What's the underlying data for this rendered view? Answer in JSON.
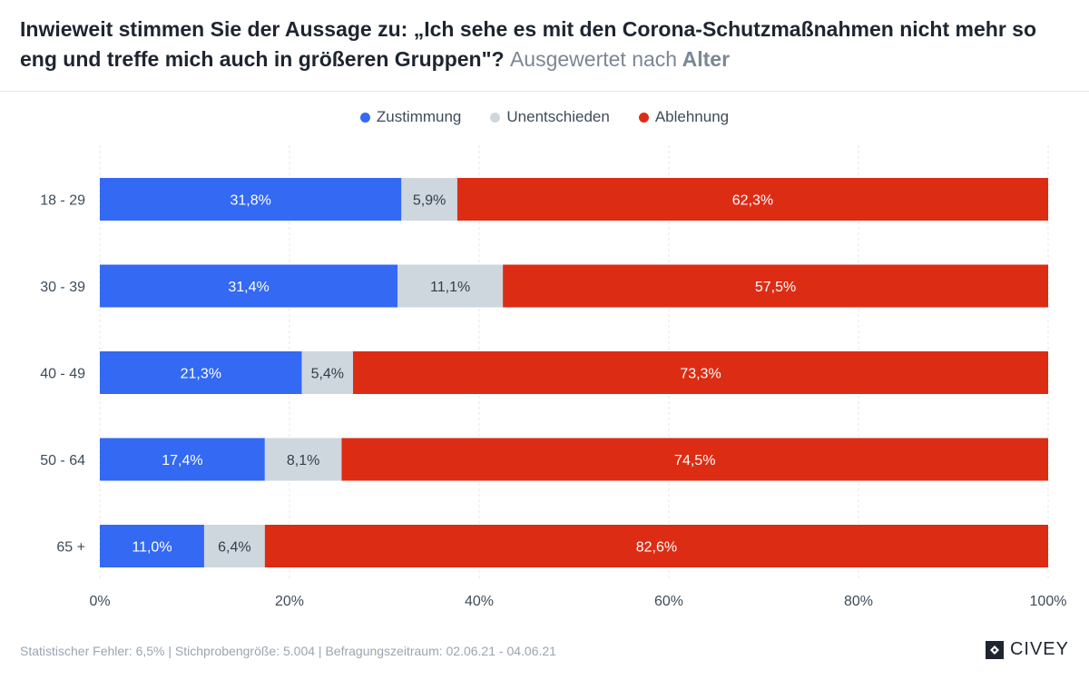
{
  "header": {
    "title": "Inwieweit stimmen Sie der Aussage zu: „Ich sehe es mit den Corona-Schutzmaßnahmen nicht mehr so eng und treffe mich auch in größeren Gruppen\"?",
    "subtitle_prefix": "Ausgewertet nach",
    "subtitle_strong": "Alter"
  },
  "legend": [
    {
      "label": "Zustimmung",
      "color": "#3369f3"
    },
    {
      "label": "Unentschieden",
      "color": "#ced6de"
    },
    {
      "label": "Ablehnung",
      "color": "#dd2c14"
    }
  ],
  "chart_data": {
    "type": "bar",
    "orientation": "horizontal",
    "stacked": true,
    "categories": [
      "18 - 29",
      "30 - 39",
      "40 - 49",
      "50 - 64",
      "65 +"
    ],
    "series": [
      {
        "name": "Zustimmung",
        "color": "#3369f3",
        "label_color": "#ffffff",
        "values": [
          31.8,
          31.4,
          21.3,
          17.4,
          11.0
        ],
        "labels": [
          "31,8%",
          "31,4%",
          "21,3%",
          "17,4%",
          "11,0%"
        ]
      },
      {
        "name": "Unentschieden",
        "color": "#ced6de",
        "label_color": "#323f4b",
        "values": [
          5.9,
          11.1,
          5.4,
          8.1,
          6.4
        ],
        "labels": [
          "5,9%",
          "11,1%",
          "5,4%",
          "8,1%",
          "6,4%"
        ]
      },
      {
        "name": "Ablehnung",
        "color": "#dd2c14",
        "label_color": "#ffffff",
        "values": [
          62.3,
          57.5,
          73.3,
          74.5,
          82.6
        ],
        "labels": [
          "62,3%",
          "57,5%",
          "73,3%",
          "74,5%",
          "82,6%"
        ]
      }
    ],
    "xlim": [
      0,
      100
    ],
    "xticks": [
      0,
      20,
      40,
      60,
      80,
      100
    ],
    "xtick_labels": [
      "0%",
      "20%",
      "40%",
      "60%",
      "80%",
      "100%"
    ],
    "grid": true,
    "legend_position": "top-center"
  },
  "footer": {
    "text": "Statistischer Fehler: 6,5% | Stichprobengröße: 5.004 | Befragungszeitraum: 02.06.21 - 04.06.21",
    "brand": "CIVEY"
  }
}
